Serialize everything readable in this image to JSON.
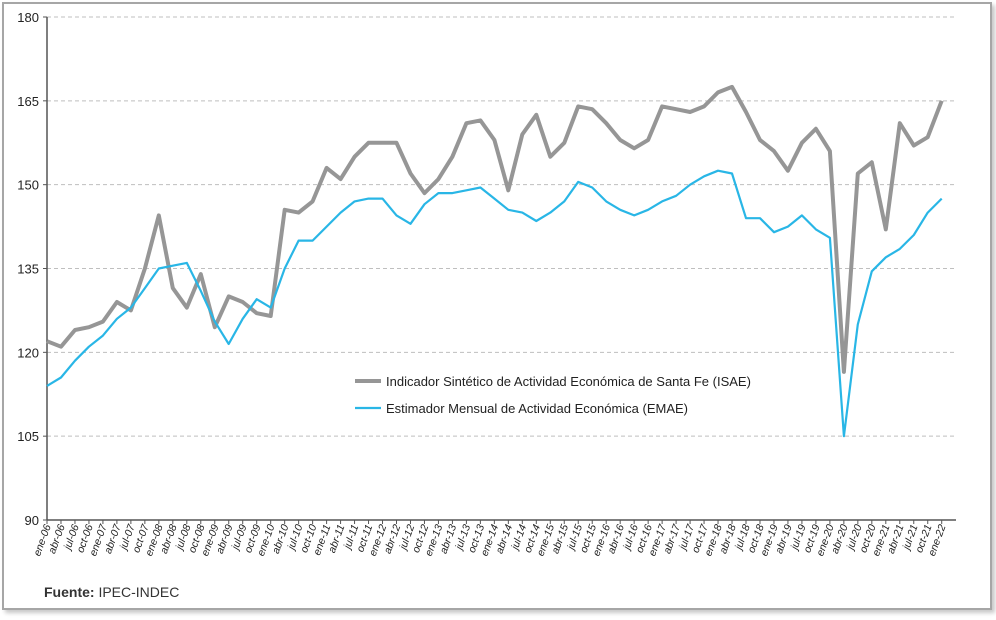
{
  "chart_data": {
    "type": "line",
    "title": "",
    "xlabel": "",
    "ylabel": "",
    "ylim": [
      90,
      180
    ],
    "yticks": [
      90,
      105,
      120,
      135,
      150,
      165,
      180
    ],
    "grid": "horizontal dashed",
    "legend_placement": "center-left",
    "x": [
      "ene-06",
      "abr-06",
      "jul-06",
      "oct-06",
      "ene-07",
      "abr-07",
      "jul-07",
      "oct-07",
      "ene-08",
      "abr-08",
      "jul-08",
      "oct-08",
      "ene-09",
      "abr-09",
      "jul-09",
      "oct-09",
      "ene-10",
      "abr-10",
      "jul-10",
      "oct-10",
      "ene-11",
      "abr-11",
      "jul-11",
      "oct-11",
      "ene-12",
      "abr-12",
      "jul-12",
      "oct-12",
      "ene-13",
      "abr-13",
      "jul-13",
      "oct-13",
      "ene-14",
      "abr-14",
      "jul-14",
      "oct-14",
      "ene-15",
      "abr-15",
      "jul-15",
      "oct-15",
      "ene-16",
      "abr-16",
      "jul-16",
      "oct-16",
      "ene-17",
      "abr-17",
      "jul-17",
      "oct-17",
      "ene-18",
      "abr-18",
      "jul-18",
      "oct-18",
      "ene-19",
      "abr-19",
      "jul-19",
      "oct-19",
      "ene-20",
      "abr-20",
      "jul-20",
      "oct-20",
      "ene-21",
      "abr-21",
      "jul-21",
      "oct-21",
      "ene-22"
    ],
    "series": [
      {
        "name": "Indicador Sintético de Actividad Económica de Santa Fe (ISAE)",
        "color": "#969696",
        "values": [
          122,
          121,
          124,
          124.5,
          125.5,
          129,
          127.5,
          135,
          144.5,
          131.5,
          128,
          134,
          124.5,
          130,
          129,
          127,
          126.5,
          145.5,
          145,
          147,
          153,
          151,
          155,
          157.5,
          157.5,
          157.5,
          152,
          148.5,
          151,
          155,
          161,
          161.5,
          158,
          149,
          159,
          162.5,
          155,
          157.5,
          164,
          163.5,
          161,
          158,
          156.5,
          158,
          164,
          163.5,
          163,
          164,
          166.5,
          167.5,
          163,
          158,
          156,
          152.5,
          157.5,
          160,
          156,
          116.5,
          152,
          154,
          142,
          161,
          157,
          158.5,
          165
        ]
      },
      {
        "name": "Estimador Mensual de Actividad Económica (EMAE)",
        "color": "#29b6e6",
        "values": [
          114,
          115.5,
          118.5,
          121,
          123,
          126,
          128,
          131.5,
          135,
          135.5,
          136,
          131,
          125.5,
          121.5,
          126,
          129.5,
          128,
          135,
          140,
          140,
          142.5,
          145,
          147,
          147.5,
          147.5,
          144.5,
          143,
          146.5,
          148.5,
          148.5,
          149,
          149.5,
          147.5,
          145.5,
          145,
          143.5,
          145,
          147,
          150.5,
          149.5,
          147,
          145.5,
          144.5,
          145.5,
          147,
          148,
          150,
          151.5,
          152.5,
          152,
          144,
          144,
          141.5,
          142.5,
          144.5,
          142,
          140.5,
          105,
          125,
          134.5,
          137,
          138.5,
          141,
          145,
          147.5
        ]
      }
    ]
  },
  "source": {
    "label": "Fuente:",
    "value": "IPEC-INDEC"
  }
}
